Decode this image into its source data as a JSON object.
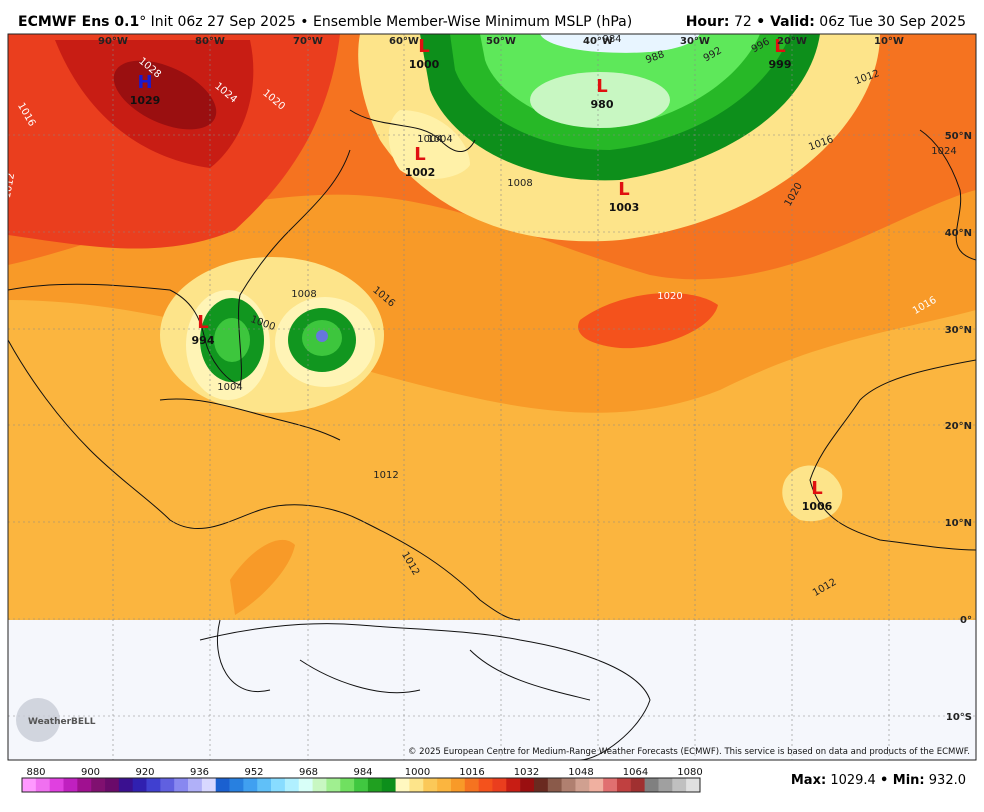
{
  "header": {
    "title": "ECMWF Ens 0.1",
    "subtitle": "° Init 06z 27 Sep 2025 • Ensemble Member-Wise Minimum MSLP (hPa)",
    "hour_label": "Hour:",
    "hour": "72",
    "valid_label": "• Valid:",
    "valid": "06z Tue 30 Sep 2025"
  },
  "map": {
    "lon_labels": [
      "90°W",
      "80°W",
      "70°W",
      "60°W",
      "50°W",
      "40°W",
      "30°W",
      "20°W",
      "10°W"
    ],
    "lat_labels": [
      "50°N",
      "40°N",
      "30°N",
      "20°N",
      "10°N",
      "0°",
      "10°S"
    ],
    "centers": [
      {
        "symbol": "H",
        "value": "1029",
        "color": "#1a1ad0"
      },
      {
        "symbol": "L",
        "value": "1000",
        "color": "#e01010"
      },
      {
        "symbol": "L",
        "value": "1002",
        "color": "#e01010"
      },
      {
        "symbol": "L",
        "value": "980",
        "color": "#e01010"
      },
      {
        "symbol": "L",
        "value": "1003",
        "color": "#e01010"
      },
      {
        "symbol": "L",
        "value": "999",
        "color": "#e01010"
      },
      {
        "symbol": "L",
        "value": "994",
        "color": "#e01010"
      },
      {
        "symbol": "L",
        "value": "1006",
        "color": "#e01010"
      }
    ],
    "contour_labels": [
      "1028",
      "1024",
      "1020",
      "1016",
      "1012",
      "1008",
      "1004",
      "1000",
      "1008",
      "1016",
      "1020",
      "1020",
      "1016",
      "1012",
      "1004",
      "1008",
      "1012",
      "1012",
      "1012",
      "1016",
      "984",
      "988",
      "992",
      "996",
      "1004",
      "1024"
    ],
    "copyright": "© 2025 European Centre for Medium-Range Weather Forecasts (ECMWF). This service is based on data and products of the ECMWF.",
    "logo": "WeatherBELL"
  },
  "colorbar": {
    "ticks": [
      "880",
      "900",
      "920",
      "936",
      "952",
      "968",
      "984",
      "1000",
      "1016",
      "1032",
      "1048",
      "1064",
      "1080"
    ]
  },
  "footer": {
    "max_label": "Max:",
    "max": "1029.4",
    "min_label": "• Min:",
    "min": "932.0"
  }
}
